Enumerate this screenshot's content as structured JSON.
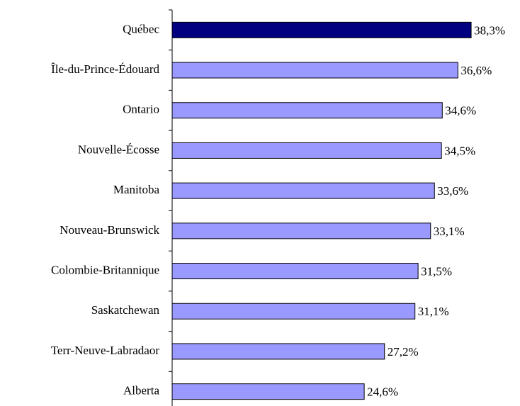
{
  "chart_data": {
    "type": "hbar",
    "categories": [
      "Québec",
      "Île-du-Prince-Édouard",
      "Ontario",
      "Nouvelle-Écosse",
      "Manitoba",
      "Nouveau-Brunswick",
      "Colombie-Britannique",
      "Saskatchewan",
      "Terr-Neuve-Labradaor",
      "Alberta"
    ],
    "values": [
      38.3,
      36.6,
      34.6,
      34.5,
      33.6,
      33.1,
      31.5,
      31.1,
      27.2,
      24.6
    ],
    "value_labels": [
      "38,3%",
      "36,6%",
      "34,6%",
      "34,5%",
      "33,6%",
      "33,1%",
      "31,5%",
      "31,1%",
      "27,2%",
      "24,6%"
    ],
    "colors": [
      "#000080",
      "#9999ff",
      "#9999ff",
      "#9999ff",
      "#9999ff",
      "#9999ff",
      "#9999ff",
      "#9999ff",
      "#9999ff",
      "#9999ff"
    ]
  }
}
